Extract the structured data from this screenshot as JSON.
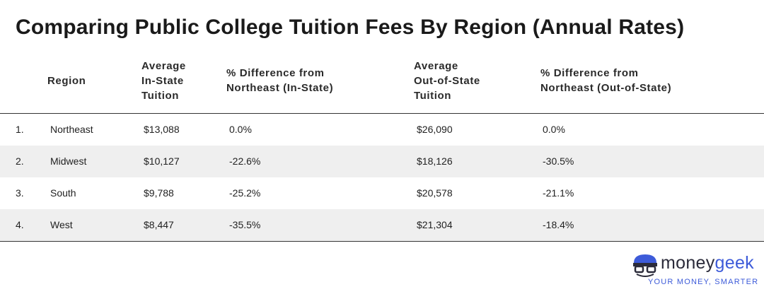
{
  "title": "Comparing Public College Tuition Fees By Region (Annual Rates)",
  "table": {
    "header": [
      [
        "Region"
      ],
      [
        "Average",
        "In-State",
        "Tuition"
      ],
      [
        "% Difference from",
        "Northeast (In-State)"
      ],
      [
        "Average",
        "Out-of-State",
        "Tuition"
      ],
      [
        "% Difference from",
        "Northeast (Out-of-State)"
      ]
    ],
    "rows": [
      [
        "1.",
        "Northeast",
        "$13,088",
        "0.0%",
        "$26,090",
        "0.0%"
      ],
      [
        "2.",
        "Midwest",
        "$10,127",
        "-22.6%",
        "$18,126",
        "-30.5%"
      ],
      [
        "3.",
        "South",
        "$9,788",
        "-25.2%",
        "$20,578",
        "-21.1%"
      ],
      [
        "4.",
        "West",
        "$8,447",
        "-35.5%",
        "$21,304",
        "-18.4%"
      ]
    ]
  },
  "logo": {
    "brand_first": "money",
    "brand_second": "geek",
    "tagline": "YOUR MONEY, SMARTER"
  }
}
